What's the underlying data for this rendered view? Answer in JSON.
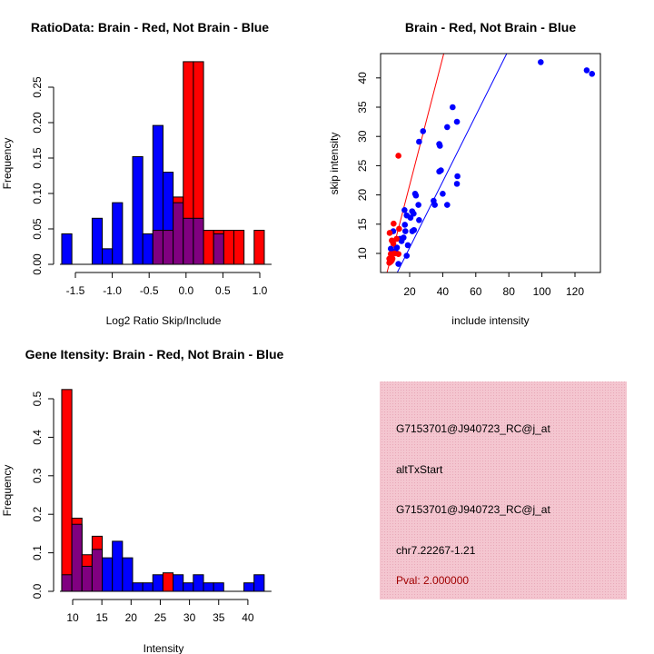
{
  "colors": {
    "red": "#ff0000",
    "blue": "#0000ff",
    "overlap": "#800080",
    "panel_bg": "#f6c4cf",
    "pval": "#a00000"
  },
  "chart_data": [
    {
      "id": "ratio",
      "type": "bar",
      "title": "RatioData: Brain - Red, Not Brain - Blue",
      "xlabel": "Log2 Ratio Skip/Include",
      "ylabel": "Frequency",
      "bin_start": -1.685,
      "bin_width": 0.1373,
      "series": [
        {
          "name": "Brain",
          "color": "red",
          "values": [
            0,
            0,
            0,
            0,
            0,
            0,
            0,
            0,
            0,
            0.048,
            0.048,
            0.095,
            0.286,
            0.286,
            0.048,
            0.048,
            0.048,
            0.048,
            0,
            0.048
          ]
        },
        {
          "name": "Not Brain",
          "color": "blue",
          "values": [
            0.043,
            0,
            0,
            0.065,
            0.022,
            0.087,
            0,
            0.152,
            0.043,
            0.196,
            0.13,
            0.087,
            0.065,
            0.065,
            0,
            0.043,
            0,
            0,
            0,
            0
          ]
        }
      ],
      "xticks": [
        "-1.5",
        "-1.0",
        "-0.5",
        "0.0",
        "0.5",
        "1.0"
      ],
      "xtick_values": [
        -1.5,
        -1.0,
        -0.5,
        0.0,
        0.5,
        1.0
      ],
      "yticks": [
        "0.00",
        "0.05",
        "0.10",
        "0.15",
        "0.20",
        "0.25"
      ],
      "ytick_values": [
        0,
        0.05,
        0.1,
        0.15,
        0.2,
        0.25
      ]
    },
    {
      "id": "scatter",
      "type": "scatter",
      "title": "Brain - Red, Not Brain - Blue",
      "xlabel": "include intensity",
      "ylabel": "skip intensity",
      "xlim": [
        2.4,
        135.4
      ],
      "ylim": [
        6.74,
        44.2
      ],
      "xticks": [
        "20",
        "40",
        "60",
        "80",
        "100",
        "120"
      ],
      "xtick_values": [
        20,
        40,
        60,
        80,
        100,
        120
      ],
      "yticks": [
        "10",
        "15",
        "20",
        "25",
        "30",
        "35",
        "40"
      ],
      "ytick_values": [
        10,
        15,
        20,
        25,
        30,
        35,
        40
      ],
      "lines": [
        {
          "name": "Brain fit",
          "color": "red",
          "slope": 1.09,
          "intercept": -0.13
        },
        {
          "name": "Not Brain fit",
          "color": "blue",
          "slope": 0.565,
          "intercept": -0.32
        }
      ],
      "series": [
        {
          "name": "Not Brain",
          "color": "blue",
          "points": [
            [
              99.3,
              42.7
            ],
            [
              127.1,
              41.3
            ],
            [
              130.3,
              40.7
            ],
            [
              46.0,
              35.0
            ],
            [
              48.6,
              32.5
            ],
            [
              42.7,
              31.6
            ],
            [
              28.1,
              30.9
            ],
            [
              25.7,
              29.1
            ],
            [
              37.9,
              28.7
            ],
            [
              38.3,
              28.4
            ],
            [
              38.9,
              24.2
            ],
            [
              37.9,
              24.0
            ],
            [
              48.9,
              23.2
            ],
            [
              48.6,
              21.9
            ],
            [
              23.3,
              20.2
            ],
            [
              23.8,
              19.9
            ],
            [
              40.0,
              20.2
            ],
            [
              34.5,
              19.0
            ],
            [
              35.2,
              18.3
            ],
            [
              42.7,
              18.3
            ],
            [
              25.3,
              18.3
            ],
            [
              16.9,
              17.4
            ],
            [
              21.5,
              17.2
            ],
            [
              22.4,
              16.8
            ],
            [
              18.2,
              16.5
            ],
            [
              20.5,
              16.1
            ],
            [
              25.7,
              15.7
            ],
            [
              17.1,
              14.9
            ],
            [
              17.4,
              13.8
            ],
            [
              22.6,
              14.0
            ],
            [
              21.6,
              13.8
            ],
            [
              10.1,
              13.8
            ],
            [
              16.3,
              12.7
            ],
            [
              15.1,
              12.1
            ],
            [
              18.9,
              11.4
            ],
            [
              8.6,
              10.8
            ],
            [
              12.3,
              11.0
            ],
            [
              11.4,
              10.4
            ],
            [
              18.2,
              9.6
            ],
            [
              13.2,
              8.2
            ],
            [
              14.1,
              12.5
            ]
          ]
        },
        {
          "name": "Brain",
          "color": "red",
          "points": [
            [
              13.2,
              26.7
            ],
            [
              10.3,
              15.1
            ],
            [
              13.6,
              14.2
            ],
            [
              7.9,
              13.5
            ],
            [
              12.1,
              12.5
            ],
            [
              9.2,
              12.2
            ],
            [
              10.1,
              11.7
            ],
            [
              10.8,
              10.0
            ],
            [
              13.2,
              9.9
            ],
            [
              8.6,
              9.9
            ],
            [
              7.7,
              9.1
            ],
            [
              9.6,
              9.1
            ],
            [
              8.6,
              8.6
            ],
            [
              7.7,
              8.4
            ],
            [
              9.2,
              8.8
            ]
          ]
        }
      ]
    },
    {
      "id": "intensity",
      "type": "bar",
      "title": "Gene Itensity: Brain - Red, Not Brain - Blue",
      "xlabel": "Intensity",
      "ylabel": "Frequency",
      "bin_start": 8.13,
      "bin_width": 1.733,
      "series": [
        {
          "name": "Brain",
          "color": "red",
          "values": [
            0.524,
            0.19,
            0.095,
            0.143,
            0,
            0,
            0,
            0,
            0,
            0,
            0.048,
            0,
            0,
            0,
            0,
            0,
            0,
            0,
            0,
            0
          ]
        },
        {
          "name": "Not Brain",
          "color": "blue",
          "values": [
            0.043,
            0.174,
            0.065,
            0.109,
            0.087,
            0.13,
            0.087,
            0.022,
            0.022,
            0.043,
            0,
            0.043,
            0.022,
            0.043,
            0.022,
            0.022,
            0,
            0,
            0.022,
            0.043
          ]
        }
      ],
      "xticks": [
        "10",
        "15",
        "20",
        "25",
        "30",
        "35",
        "40"
      ],
      "xtick_values": [
        10,
        15,
        20,
        25,
        30,
        35,
        40
      ],
      "yticks": [
        "0.0",
        "0.1",
        "0.2",
        "0.3",
        "0.4",
        "0.5"
      ],
      "ytick_values": [
        0,
        0.1,
        0.2,
        0.3,
        0.4,
        0.5
      ]
    }
  ],
  "info_panel": {
    "lines": [
      "G7153701@J940723_RC@j_at",
      "altTxStart",
      "G7153701@J940723_RC@j_at",
      "chr7.22267-1.21"
    ],
    "pval": "Pval: 2.000000"
  }
}
